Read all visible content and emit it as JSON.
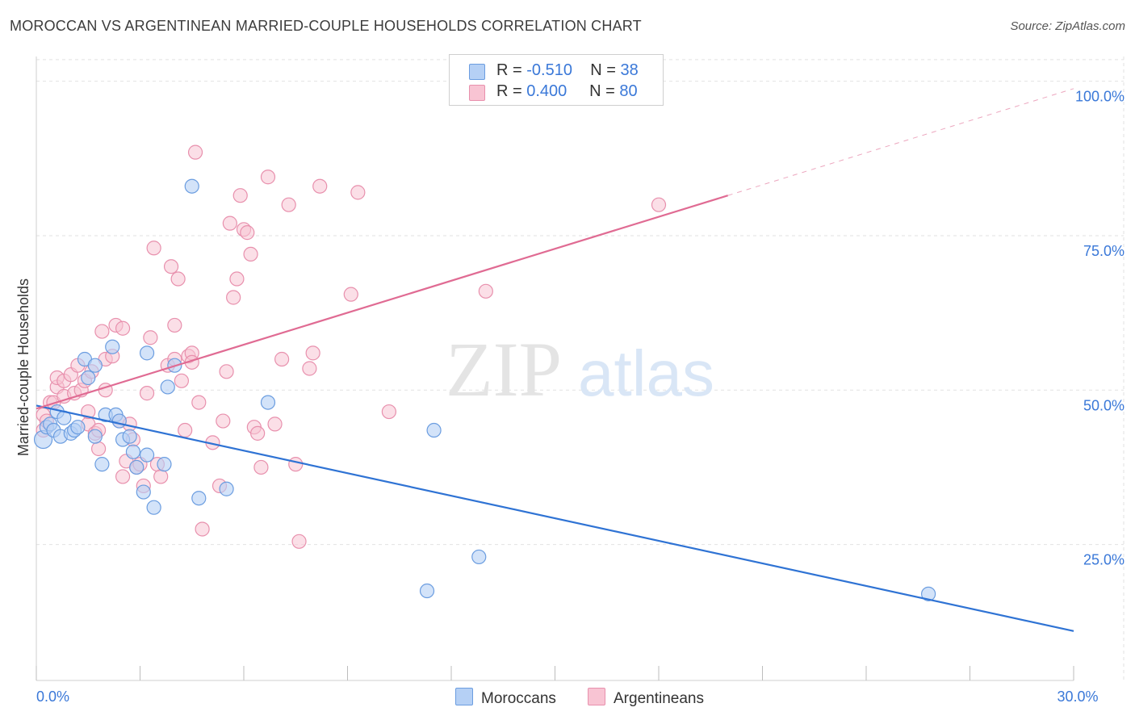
{
  "title": "MOROCCAN VS ARGENTINEAN MARRIED-COUPLE HOUSEHOLDS CORRELATION CHART",
  "source": "Source: ZipAtlas.com",
  "watermark": {
    "zip": "ZIP",
    "atlas": "atlas"
  },
  "colors": {
    "moroccans_fill": "#b5d0f5",
    "moroccans_stroke": "#6b9de0",
    "moroccans_line": "#2f73d4",
    "argentineans_fill": "#f8c4d3",
    "argentineans_stroke": "#e890ad",
    "argentineans_line": "#e06b93",
    "tick_label": "#3a78d8",
    "grid": "#e2e2e2"
  },
  "legend": {
    "rows": [
      {
        "r_label": "R =",
        "r_value": "-0.510",
        "n_label": "N =",
        "n_value": "38"
      },
      {
        "r_label": "R =",
        "r_value": "0.400",
        "n_label": "N =",
        "n_value": "80"
      }
    ]
  },
  "chart_data": {
    "type": "scatter",
    "title": "MOROCCAN VS ARGENTINEAN MARRIED-COUPLE HOUSEHOLDS CORRELATION CHART",
    "xlabel": "",
    "ylabel": "Married-couple Households",
    "xlim": [
      0,
      30
    ],
    "ylim": [
      3,
      104
    ],
    "x_tick_labels": [
      {
        "value": 0,
        "label": "0.0%"
      },
      {
        "value": 30,
        "label": "30.0%"
      }
    ],
    "y_tick_labels": [
      {
        "value": 25,
        "label": "25.0%"
      },
      {
        "value": 50,
        "label": "50.0%"
      },
      {
        "value": 75,
        "label": "75.0%"
      },
      {
        "value": 100,
        "label": "100.0%"
      }
    ],
    "grid": true,
    "legend_position": "top-center",
    "series": [
      {
        "name": "Moroccans",
        "r": -0.51,
        "n": 38,
        "trend": {
          "x": [
            0,
            30
          ],
          "y": [
            47.5,
            11
          ]
        },
        "points": [
          [
            0.2,
            42
          ],
          [
            0.3,
            44
          ],
          [
            0.4,
            44.5
          ],
          [
            0.5,
            43.5
          ],
          [
            0.6,
            46.5
          ],
          [
            0.7,
            42.5
          ],
          [
            0.8,
            45.5
          ],
          [
            1.0,
            43
          ],
          [
            1.1,
            43.5
          ],
          [
            1.2,
            44
          ],
          [
            1.4,
            55
          ],
          [
            1.5,
            52
          ],
          [
            1.7,
            42.5
          ],
          [
            1.7,
            54
          ],
          [
            1.9,
            38
          ],
          [
            2.0,
            46
          ],
          [
            2.2,
            57
          ],
          [
            2.3,
            46
          ],
          [
            2.4,
            45
          ],
          [
            2.5,
            42
          ],
          [
            2.7,
            42.5
          ],
          [
            2.8,
            40
          ],
          [
            2.9,
            37.5
          ],
          [
            3.1,
            33.5
          ],
          [
            3.2,
            39.5
          ],
          [
            3.2,
            56
          ],
          [
            3.4,
            31
          ],
          [
            3.7,
            38
          ],
          [
            3.8,
            50.5
          ],
          [
            4.0,
            54
          ],
          [
            4.5,
            83
          ],
          [
            4.7,
            32.5
          ],
          [
            5.5,
            34
          ],
          [
            6.7,
            48
          ],
          [
            11.3,
            17.5
          ],
          [
            11.5,
            43.5
          ],
          [
            12.8,
            23
          ],
          [
            25.8,
            17
          ]
        ]
      },
      {
        "name": "Argentineans",
        "r": 0.4,
        "n": 80,
        "trend": {
          "x": [
            0,
            20
          ],
          "y": [
            47,
            81.5
          ]
        },
        "trend_extension": {
          "x": [
            20,
            30
          ],
          "y": [
            81.5,
            98.8
          ]
        },
        "points": [
          [
            0.2,
            46
          ],
          [
            0.2,
            43.5
          ],
          [
            0.3,
            45
          ],
          [
            0.4,
            48
          ],
          [
            0.5,
            48
          ],
          [
            0.6,
            50.5
          ],
          [
            0.6,
            52
          ],
          [
            0.8,
            49
          ],
          [
            0.8,
            51.5
          ],
          [
            1.0,
            52.5
          ],
          [
            1.1,
            49.5
          ],
          [
            1.2,
            54
          ],
          [
            1.3,
            50
          ],
          [
            1.4,
            51.5
          ],
          [
            1.5,
            44.5
          ],
          [
            1.5,
            46.5
          ],
          [
            1.6,
            53
          ],
          [
            1.7,
            43
          ],
          [
            1.8,
            40.5
          ],
          [
            1.8,
            43.5
          ],
          [
            1.9,
            59.5
          ],
          [
            2.0,
            50
          ],
          [
            2.0,
            55
          ],
          [
            2.2,
            55.5
          ],
          [
            2.3,
            60.5
          ],
          [
            2.4,
            45
          ],
          [
            2.5,
            36
          ],
          [
            2.5,
            60
          ],
          [
            2.6,
            38.5
          ],
          [
            2.7,
            44.5
          ],
          [
            2.8,
            42
          ],
          [
            2.9,
            37.5
          ],
          [
            3.0,
            38
          ],
          [
            3.1,
            34.5
          ],
          [
            3.2,
            49.5
          ],
          [
            3.3,
            58.5
          ],
          [
            3.4,
            73
          ],
          [
            3.5,
            38
          ],
          [
            3.6,
            36
          ],
          [
            3.8,
            54
          ],
          [
            3.9,
            70
          ],
          [
            4.0,
            60.5
          ],
          [
            4.0,
            55
          ],
          [
            4.1,
            68
          ],
          [
            4.2,
            51.5
          ],
          [
            4.3,
            43.5
          ],
          [
            4.4,
            55.5
          ],
          [
            4.5,
            56
          ],
          [
            4.5,
            54.5
          ],
          [
            4.6,
            88.5
          ],
          [
            4.7,
            48
          ],
          [
            4.8,
            27.5
          ],
          [
            5.1,
            41.5
          ],
          [
            5.3,
            34.5
          ],
          [
            5.4,
            45
          ],
          [
            5.5,
            53
          ],
          [
            5.6,
            77
          ],
          [
            5.7,
            65
          ],
          [
            5.8,
            68
          ],
          [
            5.9,
            81.5
          ],
          [
            6.0,
            76
          ],
          [
            6.1,
            75.5
          ],
          [
            6.2,
            72
          ],
          [
            6.3,
            44
          ],
          [
            6.4,
            43
          ],
          [
            6.5,
            37.5
          ],
          [
            6.7,
            84.5
          ],
          [
            6.9,
            44.5
          ],
          [
            7.1,
            55
          ],
          [
            7.3,
            80
          ],
          [
            7.5,
            38
          ],
          [
            7.6,
            25.5
          ],
          [
            7.9,
            53.5
          ],
          [
            8.0,
            56
          ],
          [
            8.2,
            83
          ],
          [
            9.1,
            65.5
          ],
          [
            9.3,
            82
          ],
          [
            10.2,
            46.5
          ],
          [
            13.0,
            66
          ],
          [
            18.0,
            80
          ]
        ]
      }
    ]
  },
  "bottom_legend": {
    "moroccans": "Moroccans",
    "argentineans": "Argentineans"
  }
}
